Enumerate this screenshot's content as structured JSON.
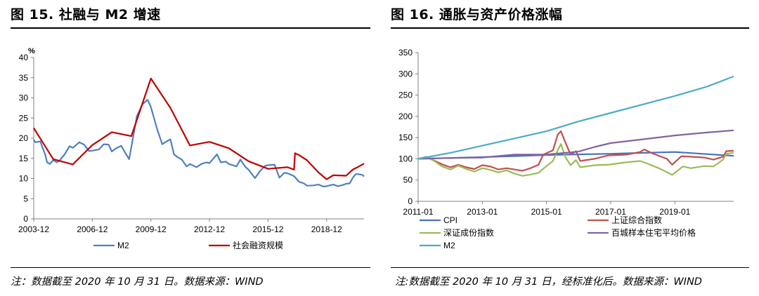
{
  "left": {
    "title": "图 15. 社融与 M2 增速",
    "note": "注：数据截至 2020 年 10 月 31 日。数据来源：WIND"
  },
  "right": {
    "title": "图 16. 通胀与资产价格涨幅",
    "note": "注:数据截至 2020 年 10 月 31 日，经标准化后。数据来源：WIND"
  },
  "chart_data": [
    {
      "type": "line",
      "ylabel": "%",
      "ylim": [
        0,
        40
      ],
      "yticks": [
        "0",
        "5",
        "10",
        "15",
        "20",
        "25",
        "30",
        "35",
        "40"
      ],
      "x_range": [
        2003.917,
        2020.833
      ],
      "xticks": [
        {
          "x": 2003.917,
          "label": "2003-12"
        },
        {
          "x": 2006.917,
          "label": "2006-12"
        },
        {
          "x": 2009.917,
          "label": "2009-12"
        },
        {
          "x": 2012.917,
          "label": "2012-12"
        },
        {
          "x": 2015.917,
          "label": "2015-12"
        },
        {
          "x": 2018.917,
          "label": "2018-12"
        }
      ],
      "grid": false,
      "legend": "bottom",
      "series": [
        {
          "name": "M2",
          "color": "#4f81bd",
          "points": [
            [
              2003.917,
              19.6
            ],
            [
              2004.0,
              19
            ],
            [
              2004.25,
              19.2
            ],
            [
              2004.5,
              16
            ],
            [
              2004.6,
              14
            ],
            [
              2004.75,
              13.6
            ],
            [
              2004.917,
              14.6
            ],
            [
              2005.1,
              14
            ],
            [
              2005.25,
              14.5
            ],
            [
              2005.5,
              16
            ],
            [
              2005.75,
              18
            ],
            [
              2005.917,
              17.6
            ],
            [
              2006.25,
              19
            ],
            [
              2006.5,
              18.4
            ],
            [
              2006.75,
              16.8
            ],
            [
              2006.917,
              16.9
            ],
            [
              2007.25,
              17.2
            ],
            [
              2007.5,
              18.5
            ],
            [
              2007.75,
              18.4
            ],
            [
              2007.917,
              16.7
            ],
            [
              2008.1,
              17.4
            ],
            [
              2008.4,
              18.1
            ],
            [
              2008.6,
              16.4
            ],
            [
              2008.8,
              14.8
            ],
            [
              2008.917,
              17.8
            ],
            [
              2009.2,
              25.5
            ],
            [
              2009.5,
              28.5
            ],
            [
              2009.75,
              29.5
            ],
            [
              2009.917,
              27.7
            ],
            [
              2010.25,
              22
            ],
            [
              2010.5,
              18.5
            ],
            [
              2010.75,
              19.3
            ],
            [
              2010.917,
              19.7
            ],
            [
              2011.1,
              16
            ],
            [
              2011.25,
              15.4
            ],
            [
              2011.5,
              14.7
            ],
            [
              2011.75,
              13
            ],
            [
              2011.917,
              13.6
            ],
            [
              2012.25,
              12.8
            ],
            [
              2012.5,
              13.6
            ],
            [
              2012.75,
              14
            ],
            [
              2012.917,
              13.8
            ],
            [
              2013.3,
              16
            ],
            [
              2013.5,
              14
            ],
            [
              2013.75,
              14.2
            ],
            [
              2013.917,
              13.6
            ],
            [
              2014.3,
              13
            ],
            [
              2014.5,
              14.7
            ],
            [
              2014.75,
              12.9
            ],
            [
              2014.917,
              12.2
            ],
            [
              2015.25,
              10.1
            ],
            [
              2015.5,
              11.8
            ],
            [
              2015.75,
              13.1
            ],
            [
              2015.917,
              13.3
            ],
            [
              2016.25,
              13.4
            ],
            [
              2016.5,
              10.2
            ],
            [
              2016.75,
              11.4
            ],
            [
              2016.917,
              11.3
            ],
            [
              2017.25,
              10.6
            ],
            [
              2017.5,
              9.2
            ],
            [
              2017.75,
              8.8
            ],
            [
              2017.917,
              8.2
            ],
            [
              2018.25,
              8.3
            ],
            [
              2018.5,
              8.5
            ],
            [
              2018.75,
              8.0
            ],
            [
              2018.917,
              8.1
            ],
            [
              2019.25,
              8.5
            ],
            [
              2019.5,
              8.1
            ],
            [
              2019.75,
              8.4
            ],
            [
              2019.917,
              8.7
            ],
            [
              2020.1,
              8.8
            ],
            [
              2020.25,
              10.1
            ],
            [
              2020.4,
              11.1
            ],
            [
              2020.5,
              11.1
            ],
            [
              2020.75,
              10.9
            ],
            [
              2020.833,
              10.5
            ]
          ]
        },
        {
          "name": "社会融资规模",
          "color": "#c00000",
          "points": [
            [
              2003.917,
              22.5
            ],
            [
              2004.917,
              14.8
            ],
            [
              2005.917,
              13.5
            ],
            [
              2006.917,
              18.3
            ],
            [
              2007.917,
              21.5
            ],
            [
              2008.917,
              20.5
            ],
            [
              2009.917,
              34.8
            ],
            [
              2010.917,
              27.5
            ],
            [
              2011.917,
              18.2
            ],
            [
              2012.917,
              19.1
            ],
            [
              2013.917,
              17.5
            ],
            [
              2014.917,
              14.3
            ],
            [
              2015.917,
              12.4
            ],
            [
              2016.917,
              12.8
            ],
            [
              2017.25,
              12.2
            ],
            [
              2017.3,
              16.3
            ],
            [
              2017.5,
              15.8
            ],
            [
              2017.917,
              14.5
            ],
            [
              2018.5,
              11.5
            ],
            [
              2018.917,
              9.8
            ],
            [
              2019.25,
              10.8
            ],
            [
              2019.917,
              10.7
            ],
            [
              2020.25,
              12.2
            ],
            [
              2020.5,
              12.8
            ],
            [
              2020.833,
              13.7
            ]
          ]
        }
      ]
    },
    {
      "type": "line",
      "ylim": [
        0,
        350
      ],
      "yticks": [
        "0",
        "50",
        "100",
        "150",
        "200",
        "250",
        "300",
        "350"
      ],
      "x_range": [
        2011.0,
        2020.833
      ],
      "xticks": [
        {
          "x": 2011.0,
          "label": "2011-01"
        },
        {
          "x": 2013.0,
          "label": "2013-01"
        },
        {
          "x": 2015.0,
          "label": "2015-01"
        },
        {
          "x": 2017.0,
          "label": "2017-01"
        },
        {
          "x": 2019.0,
          "label": "2019-01"
        }
      ],
      "grid": false,
      "legend": "bottom",
      "series": [
        {
          "name": "CPI",
          "color": "#4472c4",
          "points": [
            [
              2011.0,
              100
            ],
            [
              2013.0,
              104
            ],
            [
              2015.0,
              109
            ],
            [
              2017.0,
              112
            ],
            [
              2019.0,
              116
            ],
            [
              2020.833,
              107
            ]
          ]
        },
        {
          "name": "上证综合指数",
          "color": "#c0504d",
          "points": [
            [
              2011.0,
              100
            ],
            [
              2011.25,
              104
            ],
            [
              2011.5,
              96
            ],
            [
              2011.75,
              87
            ],
            [
              2012.0,
              80
            ],
            [
              2012.25,
              86
            ],
            [
              2012.5,
              80
            ],
            [
              2012.75,
              76
            ],
            [
              2013.0,
              85
            ],
            [
              2013.25,
              82
            ],
            [
              2013.5,
              75
            ],
            [
              2013.75,
              78
            ],
            [
              2014.0,
              75
            ],
            [
              2014.25,
              72
            ],
            [
              2014.5,
              78
            ],
            [
              2014.75,
              86
            ],
            [
              2014.9,
              110
            ],
            [
              2015.2,
              120
            ],
            [
              2015.35,
              157
            ],
            [
              2015.45,
              165
            ],
            [
              2015.58,
              140
            ],
            [
              2015.75,
              110
            ],
            [
              2015.917,
              118
            ],
            [
              2016.05,
              95
            ],
            [
              2016.5,
              100
            ],
            [
              2016.917,
              108
            ],
            [
              2017.5,
              110
            ],
            [
              2017.917,
              116
            ],
            [
              2018.05,
              122
            ],
            [
              2018.3,
              113
            ],
            [
              2018.75,
              100
            ],
            [
              2018.917,
              86
            ],
            [
              2019.2,
              106
            ],
            [
              2019.5,
              105
            ],
            [
              2019.917,
              103
            ],
            [
              2020.2,
              98
            ],
            [
              2020.5,
              105
            ],
            [
              2020.6,
              118
            ],
            [
              2020.833,
              119
            ]
          ]
        },
        {
          "name": "深证成份指数",
          "color": "#9bbb59",
          "points": [
            [
              2011.0,
              100
            ],
            [
              2011.25,
              105
            ],
            [
              2011.5,
              95
            ],
            [
              2011.75,
              82
            ],
            [
              2012.0,
              75
            ],
            [
              2012.25,
              84
            ],
            [
              2012.5,
              76
            ],
            [
              2012.75,
              70
            ],
            [
              2013.0,
              78
            ],
            [
              2013.25,
              74
            ],
            [
              2013.5,
              68
            ],
            [
              2013.75,
              73
            ],
            [
              2014.0,
              65
            ],
            [
              2014.25,
              60
            ],
            [
              2014.5,
              63
            ],
            [
              2014.75,
              67
            ],
            [
              2014.917,
              78
            ],
            [
              2015.2,
              95
            ],
            [
              2015.35,
              120
            ],
            [
              2015.45,
              135
            ],
            [
              2015.58,
              105
            ],
            [
              2015.75,
              85
            ],
            [
              2015.917,
              97
            ],
            [
              2016.05,
              80
            ],
            [
              2016.5,
              85
            ],
            [
              2016.917,
              86
            ],
            [
              2017.5,
              92
            ],
            [
              2017.917,
              95
            ],
            [
              2018.1,
              90
            ],
            [
              2018.5,
              78
            ],
            [
              2018.917,
              62
            ],
            [
              2019.25,
              82
            ],
            [
              2019.5,
              78
            ],
            [
              2019.917,
              83
            ],
            [
              2020.2,
              82
            ],
            [
              2020.5,
              98
            ],
            [
              2020.6,
              112
            ],
            [
              2020.833,
              114
            ]
          ]
        },
        {
          "name": "百城样本住宅平均价格",
          "color": "#8064a2",
          "points": [
            [
              2011.0,
              100
            ],
            [
              2012.0,
              102
            ],
            [
              2013.0,
              103
            ],
            [
              2014.0,
              110
            ],
            [
              2015.0,
              110
            ],
            [
              2016.0,
              117
            ],
            [
              2016.5,
              128
            ],
            [
              2017.0,
              137
            ],
            [
              2018.0,
              146
            ],
            [
              2019.0,
              155
            ],
            [
              2020.0,
              162
            ],
            [
              2020.833,
              167
            ]
          ]
        },
        {
          "name": "M2",
          "color": "#4bacc6",
          "points": [
            [
              2011.0,
              100
            ],
            [
              2012.0,
              114
            ],
            [
              2013.0,
              131
            ],
            [
              2014.0,
              148
            ],
            [
              2015.0,
              165
            ],
            [
              2016.0,
              188
            ],
            [
              2017.0,
              208
            ],
            [
              2018.0,
              228
            ],
            [
              2019.0,
              248
            ],
            [
              2020.0,
              270
            ],
            [
              2020.833,
              294
            ]
          ]
        }
      ]
    }
  ]
}
